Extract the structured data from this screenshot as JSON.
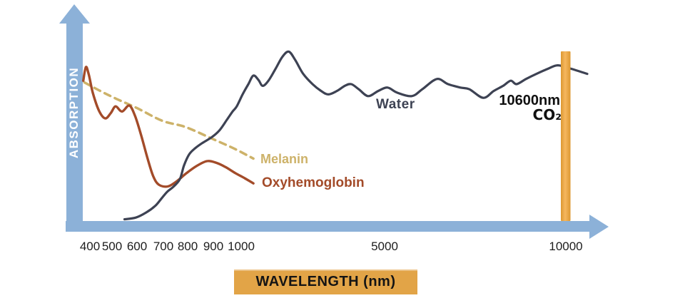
{
  "chart_data": {
    "type": "line",
    "title": "",
    "xlabel": "WAVELENGTH (nm)",
    "ylabel": "ABSORPTION",
    "legend_position": "inline-labels",
    "grid": false,
    "x_axis": {
      "unit": "nm",
      "scale": "compressed piecewise (400-1000 expanded, 1000-10000 compressed)",
      "ticks": [
        {
          "label": "400",
          "nm": 400
        },
        {
          "label": "500",
          "nm": 500
        },
        {
          "label": "600",
          "nm": 600
        },
        {
          "label": "700",
          "nm": 700
        },
        {
          "label": "800",
          "nm": 800
        },
        {
          "label": "900",
          "nm": 900
        },
        {
          "label": "1000",
          "nm": 1000
        },
        {
          "label": "5000",
          "nm": 5000
        },
        {
          "label": "10000",
          "nm": 10000
        }
      ]
    },
    "y_axis": {
      "label": "ABSORPTION",
      "range": [
        0,
        1
      ],
      "ticks": "none (relative scale)"
    },
    "colors": {
      "axis": "#8cb1d8",
      "co2_bar_edge": "#dd9831",
      "co2_bar_center": "#f5b75f",
      "x_label_box": "#e2a447",
      "annotation_text": "#101010"
    },
    "series": [
      {
        "name": "melanin",
        "label": "Melanin",
        "color": "#cdb269",
        "style": "dashed",
        "dash": "9 7",
        "stroke_width": 3.5,
        "points": [
          [
            375,
            0.81
          ],
          [
            447,
            0.76
          ],
          [
            516,
            0.715
          ],
          [
            600,
            0.66
          ],
          [
            697,
            0.585
          ],
          [
            790,
            0.55
          ],
          [
            897,
            0.48
          ],
          [
            979,
            0.42
          ],
          [
            1340,
            0.365
          ]
        ]
      },
      {
        "name": "oxyhemoglobin",
        "label": "Oxyhemoglobin",
        "color": "#a34b29",
        "style": "solid",
        "dash": "",
        "stroke_width": 3.4,
        "points": [
          [
            370,
            0.82
          ],
          [
            382,
            0.9
          ],
          [
            395,
            0.855
          ],
          [
            413,
            0.75
          ],
          [
            441,
            0.645
          ],
          [
            469,
            0.6
          ],
          [
            494,
            0.63
          ],
          [
            514,
            0.67
          ],
          [
            540,
            0.64
          ],
          [
            569,
            0.675
          ],
          [
            592,
            0.615
          ],
          [
            616,
            0.5
          ],
          [
            641,
            0.36
          ],
          [
            662,
            0.26
          ],
          [
            683,
            0.212
          ],
          [
            718,
            0.202
          ],
          [
            753,
            0.23
          ],
          [
            791,
            0.275
          ],
          [
            833,
            0.32
          ],
          [
            875,
            0.35
          ],
          [
            911,
            0.34
          ],
          [
            944,
            0.315
          ],
          [
            979,
            0.28
          ],
          [
            1100,
            0.25
          ],
          [
            1340,
            0.22
          ]
        ]
      },
      {
        "name": "water",
        "label": "Water",
        "color": "#3d4253",
        "style": "solid",
        "dash": "",
        "stroke_width": 3.2,
        "points": [
          [
            550,
            0.01
          ],
          [
            595,
            0.02
          ],
          [
            635,
            0.05
          ],
          [
            670,
            0.09
          ],
          [
            692,
            0.13
          ],
          [
            715,
            0.17
          ],
          [
            741,
            0.2
          ],
          [
            768,
            0.245
          ],
          [
            785,
            0.325
          ],
          [
            806,
            0.39
          ],
          [
            829,
            0.425
          ],
          [
            856,
            0.455
          ],
          [
            894,
            0.49
          ],
          [
            922,
            0.53
          ],
          [
            948,
            0.59
          ],
          [
            969,
            0.64
          ],
          [
            984,
            0.67
          ],
          [
            1040,
            0.74
          ],
          [
            1200,
            0.8
          ],
          [
            1340,
            0.85
          ],
          [
            1480,
            0.825
          ],
          [
            1600,
            0.79
          ],
          [
            1760,
            0.82
          ],
          [
            1960,
            0.89
          ],
          [
            2150,
            0.96
          ],
          [
            2330,
            0.99
          ],
          [
            2510,
            0.94
          ],
          [
            2730,
            0.86
          ],
          [
            2990,
            0.8
          ],
          [
            3230,
            0.76
          ],
          [
            3430,
            0.74
          ],
          [
            3670,
            0.76
          ],
          [
            3890,
            0.79
          ],
          [
            4070,
            0.8
          ],
          [
            4280,
            0.77
          ],
          [
            4540,
            0.73
          ],
          [
            4820,
            0.76
          ],
          [
            5080,
            0.78
          ],
          [
            5350,
            0.75
          ],
          [
            5750,
            0.73
          ],
          [
            6040,
            0.77
          ],
          [
            6440,
            0.83
          ],
          [
            6750,
            0.8
          ],
          [
            7090,
            0.78
          ],
          [
            7340,
            0.77
          ],
          [
            7720,
            0.72
          ],
          [
            8010,
            0.76
          ],
          [
            8270,
            0.79
          ],
          [
            8480,
            0.82
          ],
          [
            8640,
            0.8
          ],
          [
            8900,
            0.83
          ],
          [
            9190,
            0.86
          ],
          [
            9510,
            0.89
          ],
          [
            9780,
            0.91
          ],
          [
            10140,
            0.89
          ],
          [
            10590,
            0.86
          ]
        ]
      }
    ],
    "annotations": [
      {
        "text": "10600nm",
        "target_nm": 10600
      },
      {
        "text": "CO₂",
        "target_nm": 10600
      }
    ],
    "co2_laser_line_nm": 10600
  }
}
